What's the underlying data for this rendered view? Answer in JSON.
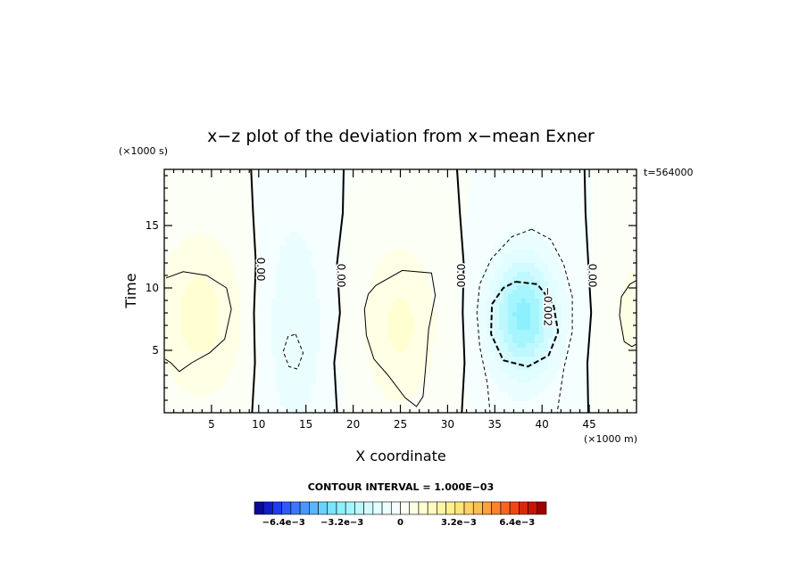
{
  "chart_data": {
    "type": "heatmap",
    "title": "x−z plot of the deviation from x−mean Exner",
    "xlabel": "X coordinate",
    "ylabel": "Time",
    "x_unit": "(×1000 m)",
    "y_unit": "(×1000 s)",
    "time_stamp": "t=564000",
    "xlim": [
      0,
      50
    ],
    "ylim": [
      0,
      19.5
    ],
    "x_ticks": [
      5,
      10,
      15,
      20,
      25,
      30,
      35,
      40,
      45
    ],
    "y_ticks": [
      5,
      10,
      15
    ],
    "contour_interval_text": "CONTOUR INTERVAL = 1.000E−03",
    "zero_contours": [
      {
        "label": "0.00",
        "points": [
          [
            9.3,
            0
          ],
          [
            9.6,
            4
          ],
          [
            9.5,
            8
          ],
          [
            9.7,
            12
          ],
          [
            9.4,
            16
          ],
          [
            9.2,
            19.5
          ]
        ],
        "label_at": [
          10.2,
          11.5
        ]
      },
      {
        "label": "0.00",
        "points": [
          [
            18.3,
            0
          ],
          [
            18.0,
            4
          ],
          [
            18.6,
            8
          ],
          [
            18.3,
            12
          ],
          [
            18.9,
            16
          ],
          [
            19.0,
            19.5
          ]
        ],
        "label_at": [
          18.7,
          11.0
        ]
      },
      {
        "label": "0.00",
        "points": [
          [
            31.5,
            0
          ],
          [
            31.8,
            4
          ],
          [
            31.6,
            8
          ],
          [
            31.7,
            12
          ],
          [
            31.3,
            16
          ],
          [
            31.0,
            19.5
          ]
        ],
        "label_at": [
          31.4,
          11.0
        ]
      },
      {
        "label": "0.00",
        "points": [
          [
            44.9,
            0
          ],
          [
            44.8,
            4
          ],
          [
            45.2,
            8
          ],
          [
            44.9,
            12
          ],
          [
            44.6,
            16
          ],
          [
            44.5,
            19.5
          ]
        ],
        "label_at": [
          45.3,
          11.0
        ]
      }
    ],
    "positive_contours": [
      {
        "points": [
          [
            0.2,
            10.8
          ],
          [
            2,
            11.3
          ],
          [
            4.5,
            11.0
          ],
          [
            6.6,
            10.0
          ],
          [
            7.1,
            8.3
          ],
          [
            6.4,
            5.9
          ],
          [
            4.8,
            4.8
          ],
          [
            2.9,
            4.0
          ],
          [
            1.6,
            3.3
          ],
          [
            0.7,
            4.0
          ],
          [
            0.1,
            4.3
          ]
        ]
      },
      {
        "points": [
          [
            22.4,
            10.2
          ],
          [
            25.2,
            11.4
          ],
          [
            28.3,
            11.2
          ],
          [
            28.7,
            9.4
          ],
          [
            28.0,
            6.7
          ],
          [
            27.7,
            3.9
          ],
          [
            27.4,
            1.3
          ],
          [
            26.7,
            0.5
          ],
          [
            25.5,
            1.2
          ],
          [
            23.7,
            3.0
          ],
          [
            22.2,
            4.3
          ],
          [
            21.4,
            6.2
          ],
          [
            21.2,
            8.3
          ],
          [
            21.6,
            9.5
          ],
          [
            22.4,
            10.2
          ]
        ]
      },
      {
        "points": [
          [
            50,
            10.6
          ],
          [
            49.3,
            10.3
          ],
          [
            48.4,
            9.3
          ],
          [
            48.2,
            7.8
          ],
          [
            48.7,
            5.7
          ],
          [
            49.5,
            5.3
          ],
          [
            50,
            5.5
          ]
        ]
      }
    ],
    "negative_contours": [
      {
        "level": "-0.002",
        "label": "−0.002",
        "label_at": [
          40.6,
          8.5
        ],
        "points": [
          [
            37.2,
            10.5
          ],
          [
            39.5,
            10.3
          ],
          [
            41.2,
            8.7
          ],
          [
            41.7,
            6.5
          ],
          [
            40.7,
            4.6
          ],
          [
            38.5,
            3.7
          ],
          [
            35.9,
            4.2
          ],
          [
            34.6,
            6.3
          ],
          [
            34.7,
            8.7
          ],
          [
            35.9,
            10.0
          ],
          [
            37.2,
            10.5
          ]
        ]
      },
      {
        "level": "-0.001",
        "points": [
          [
            38.9,
            14.7
          ],
          [
            40.9,
            13.9
          ],
          [
            42.3,
            11.9
          ],
          [
            43.2,
            9.3
          ],
          [
            43.2,
            6.5
          ],
          [
            42.3,
            3.5
          ],
          [
            41.6,
            0
          ]
        ]
      },
      {
        "level": "-0.001",
        "points": [
          [
            38.9,
            14.7
          ],
          [
            36.8,
            14.1
          ],
          [
            34.6,
            12.3
          ],
          [
            33.4,
            10.3
          ],
          [
            33.1,
            8.0
          ],
          [
            33.4,
            5.3
          ],
          [
            34.2,
            2.4
          ],
          [
            34.5,
            0
          ]
        ]
      },
      {
        "level": "-0.001",
        "points": [
          [
            13.9,
            6.3
          ],
          [
            14.7,
            4.8
          ],
          [
            14.1,
            3.5
          ],
          [
            13.2,
            3.7
          ],
          [
            12.6,
            4.9
          ],
          [
            13.1,
            6.1
          ],
          [
            13.9,
            6.3
          ]
        ]
      }
    ],
    "field_sources": [
      {
        "x": 3.8,
        "y": 7.8,
        "amp": 0.0012,
        "sx": 4.8,
        "sy": 7.0
      },
      {
        "x": 25.0,
        "y": 7.0,
        "amp": 0.0011,
        "sx": 4.2,
        "sy": 7.0
      },
      {
        "x": 50.0,
        "y": 8.0,
        "amp": 0.0008,
        "sx": 2.6,
        "sy": 5.0
      },
      {
        "x": 38.0,
        "y": 7.8,
        "amp": -0.0032,
        "sx": 3.6,
        "sy": 5.0
      },
      {
        "x": 13.8,
        "y": 7.0,
        "amp": -0.001,
        "sx": 3.2,
        "sy": 9.0
      }
    ],
    "colorbar": {
      "levels_min": -0.008,
      "levels_max": 0.008,
      "tick_labels": [
        {
          "value": -0.0064,
          "text": "−6.4e−3"
        },
        {
          "value": -0.0032,
          "text": "−3.2e−3"
        },
        {
          "value": 0,
          "text": "0"
        },
        {
          "value": 0.0032,
          "text": "3.2e−3"
        },
        {
          "value": 0.0064,
          "text": "6.4e−3"
        }
      ],
      "colors": [
        "#0a0a96",
        "#0f1ec8",
        "#1e3cf0",
        "#2d5aff",
        "#3c78ff",
        "#4b96ff",
        "#5ab4ff",
        "#69d2ff",
        "#78e6ff",
        "#8cf0ff",
        "#a5f5ff",
        "#bef8ff",
        "#d2fbff",
        "#e1fdff",
        "#ebfeff",
        "#f5ffff",
        "#fbfff5",
        "#ffffe6",
        "#ffffd2",
        "#fffabe",
        "#fff5a5",
        "#fff08c",
        "#ffe678",
        "#ffd264",
        "#ffbe50",
        "#ffa03c",
        "#ff822d",
        "#ff641e",
        "#f04614",
        "#dc280a",
        "#c81405",
        "#a00000"
      ]
    }
  }
}
